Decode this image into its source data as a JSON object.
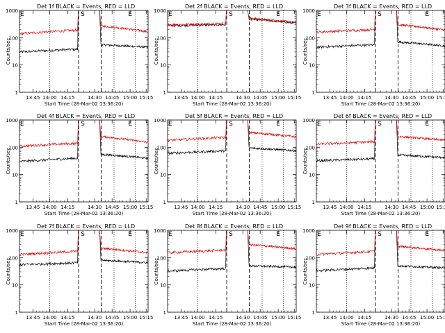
{
  "chart_data": [
    {
      "type": "line",
      "title": "Det 1f BLACK = Events, RED = LLD",
      "xlabel": "Start Time (28-Mar-02 13:36:20)",
      "ylabel": "Counts/sec",
      "yscale": "log",
      "ylim": [
        1,
        1000
      ],
      "x_ticks": [
        "13:45",
        "14:00",
        "14:15",
        "14:30",
        "14:45",
        "15:00",
        "15:15"
      ],
      "y_ticks": [
        "1",
        "10",
        "100",
        "1000"
      ],
      "markers": [
        "S",
        "E"
      ],
      "series": [
        {
          "name": "Events",
          "color": "#000000",
          "pre": [
            30,
            38
          ],
          "post": [
            55,
            45
          ]
        },
        {
          "name": "LLD",
          "color": "#e00000",
          "pre": [
            140,
            190
          ],
          "post": [
            270,
            165
          ]
        }
      ]
    },
    {
      "type": "line",
      "title": "Det 2f BLACK = Events, RED = LLD",
      "xlabel": "Start Time (28-Mar-02 13:36:20)",
      "ylabel": "Counts/sec",
      "yscale": "log",
      "ylim": [
        1,
        1000
      ],
      "x_ticks": [
        "13:45",
        "14:00",
        "14:15",
        "14:30",
        "14:45",
        "15:00",
        "15:15"
      ],
      "y_ticks": [
        "1",
        "10",
        "100",
        "1000"
      ],
      "markers": [
        "S",
        "E"
      ],
      "series": [
        {
          "name": "Events",
          "color": "#000000",
          "pre": [
            280,
            300
          ],
          "post": [
            480,
            340
          ]
        },
        {
          "name": "LLD",
          "color": "#e00000",
          "pre": [
            300,
            330
          ],
          "post": [
            520,
            360
          ]
        }
      ]
    },
    {
      "type": "line",
      "title": "Det 3f BLACK = Events, RED = LLD",
      "xlabel": "Start Time (28-Mar-02 13:36:20)",
      "ylabel": "Counts/sec",
      "yscale": "log",
      "ylim": [
        1,
        1000
      ],
      "x_ticks": [
        "13:45",
        "14:00",
        "14:15",
        "14:30",
        "14:45",
        "15:00",
        "15:15"
      ],
      "y_ticks": [
        "1",
        "10",
        "100",
        "1000"
      ],
      "markers": [
        "S",
        "E"
      ],
      "series": [
        {
          "name": "Events",
          "color": "#000000",
          "pre": [
            45,
            55
          ],
          "post": [
            70,
            50
          ]
        },
        {
          "name": "LLD",
          "color": "#e00000",
          "pre": [
            160,
            200
          ],
          "post": [
            300,
            190
          ]
        }
      ]
    },
    {
      "type": "line",
      "title": "Det 4f BLACK = Events, RED = LLD",
      "xlabel": "Start Time (28-Mar-02 13:36:20)",
      "ylabel": "Counts/sec",
      "yscale": "log",
      "ylim": [
        1,
        1000
      ],
      "x_ticks": [
        "13:45",
        "14:00",
        "14:15",
        "14:30",
        "14:45",
        "15:00",
        "15:15"
      ],
      "y_ticks": [
        "1",
        "10",
        "100",
        "1000"
      ],
      "markers": [
        "S",
        "E"
      ],
      "series": [
        {
          "name": "Events",
          "color": "#000000",
          "pre": [
            30,
            40
          ],
          "post": [
            55,
            40
          ]
        },
        {
          "name": "LLD",
          "color": "#e00000",
          "pre": [
            110,
            140
          ],
          "post": [
            250,
            150
          ]
        }
      ]
    },
    {
      "type": "line",
      "title": "Det 5f BLACK = Events, RED = LLD",
      "xlabel": "Start Time (28-Mar-02 13:36:20)",
      "ylabel": "Counts/sec",
      "yscale": "log",
      "ylim": [
        1,
        1000
      ],
      "x_ticks": [
        "13:45",
        "14:00",
        "14:15",
        "14:30",
        "14:45",
        "15:00",
        "15:15"
      ],
      "y_ticks": [
        "1",
        "10",
        "100",
        "1000"
      ],
      "markers": [
        "S",
        "E"
      ],
      "series": [
        {
          "name": "Events",
          "color": "#000000",
          "pre": [
            60,
            75
          ],
          "post": [
            95,
            75
          ]
        },
        {
          "name": "LLD",
          "color": "#e00000",
          "pre": [
            180,
            230
          ],
          "post": [
            350,
            240
          ]
        }
      ]
    },
    {
      "type": "line",
      "title": "Det 6f BLACK = Events, RED = LLD",
      "xlabel": "Start Time (28-Mar-02 13:36:20)",
      "ylabel": "Counts/sec",
      "yscale": "log",
      "ylim": [
        1,
        1000
      ],
      "x_ticks": [
        "13:45",
        "14:00",
        "14:15",
        "14:30",
        "14:45",
        "15:00",
        "15:15"
      ],
      "y_ticks": [
        "1",
        "10",
        "100",
        "1000"
      ],
      "markers": [
        "S",
        "E"
      ],
      "series": [
        {
          "name": "Events",
          "color": "#000000",
          "pre": [
            32,
            38
          ],
          "post": [
            52,
            42
          ]
        },
        {
          "name": "LLD",
          "color": "#e00000",
          "pre": [
            130,
            160
          ],
          "post": [
            250,
            180
          ]
        }
      ]
    },
    {
      "type": "line",
      "title": "Det 7f BLACK = Events, RED = LLD",
      "xlabel": "Start Time (28-Mar-02 13:36:20)",
      "ylabel": "Counts/sec",
      "yscale": "log",
      "ylim": [
        1,
        1000
      ],
      "x_ticks": [
        "13:45",
        "14:00",
        "14:15",
        "14:30",
        "14:45",
        "15:00",
        "15:15"
      ],
      "y_ticks": [
        "1",
        "10",
        "100",
        "1000"
      ],
      "markers": [
        "S",
        "E"
      ],
      "series": [
        {
          "name": "Events",
          "color": "#000000",
          "pre": [
            55,
            65
          ],
          "post": [
            80,
            65
          ]
        },
        {
          "name": "LLD",
          "color": "#e00000",
          "pre": [
            130,
            170
          ],
          "post": [
            220,
            150
          ]
        }
      ]
    },
    {
      "type": "line",
      "title": "Det 8f BLACK = Events, RED = LLD",
      "xlabel": "Start Time (28-Mar-02 13:36:20)",
      "ylabel": "Counts/sec",
      "yscale": "log",
      "ylim": [
        1,
        1000
      ],
      "x_ticks": [
        "13:45",
        "14:00",
        "14:15",
        "14:30",
        "14:45",
        "15:00",
        "15:15"
      ],
      "y_ticks": [
        "1",
        "10",
        "100",
        "1000"
      ],
      "markers": [
        "S",
        "E"
      ],
      "series": [
        {
          "name": "Events",
          "color": "#000000",
          "pre": [
            32,
            40
          ],
          "post": [
            50,
            45
          ]
        },
        {
          "name": "LLD",
          "color": "#e00000",
          "pre": [
            150,
            190
          ],
          "post": [
            300,
            210
          ]
        }
      ]
    },
    {
      "type": "line",
      "title": "Det 9f BLACK = Events, RED = LLD",
      "xlabel": "Start Time (28-Mar-02 13:36:20)",
      "ylabel": "Counts/sec",
      "yscale": "log",
      "ylim": [
        1,
        1000
      ],
      "x_ticks": [
        "13:45",
        "14:00",
        "14:15",
        "14:30",
        "14:45",
        "15:00",
        "15:15"
      ],
      "y_ticks": [
        "1",
        "10",
        "100",
        "1000"
      ],
      "markers": [
        "S",
        "E"
      ],
      "series": [
        {
          "name": "Events",
          "color": "#000000",
          "pre": [
            33,
            42
          ],
          "post": [
            50,
            42
          ]
        },
        {
          "name": "LLD",
          "color": "#e00000",
          "pre": [
            130,
            170
          ],
          "post": [
            260,
            180
          ]
        }
      ]
    }
  ]
}
